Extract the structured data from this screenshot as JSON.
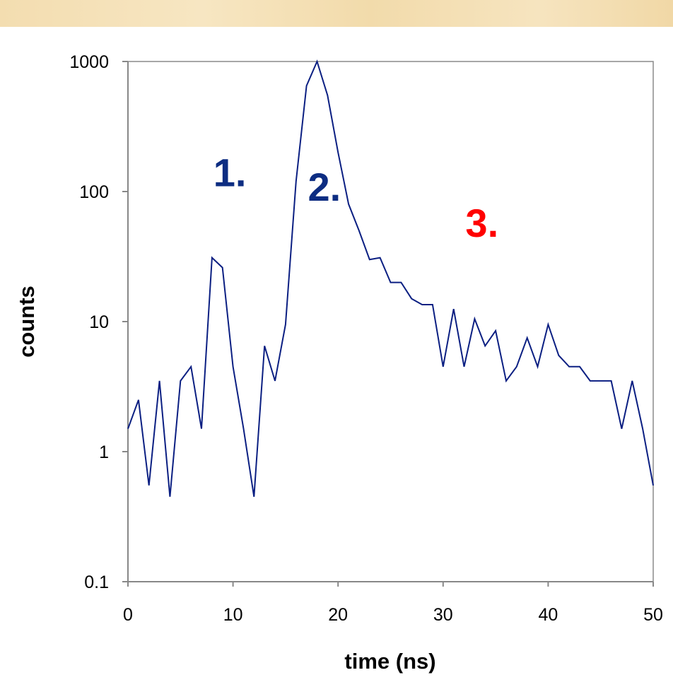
{
  "chart_data": {
    "type": "line",
    "xlabel": "time (ns)",
    "ylabel": "counts",
    "x_ticks": [
      "0",
      "10",
      "20",
      "30",
      "40",
      "50"
    ],
    "y_ticks": [
      "0.1",
      "1",
      "10",
      "100",
      "1000"
    ],
    "xlim": [
      0,
      50
    ],
    "ylim": [
      0.1,
      1000
    ],
    "y_scale": "log",
    "grid": false,
    "legend": "none",
    "series": [
      {
        "color": "#0b1f82",
        "x": [
          0,
          1,
          2,
          3,
          4,
          5,
          6,
          7,
          8,
          9,
          10,
          11,
          12,
          13,
          14,
          15,
          16,
          17,
          18,
          19,
          20,
          21,
          22,
          23,
          24,
          25,
          26,
          27,
          28,
          29,
          30,
          31,
          32,
          33,
          34,
          35,
          36,
          37,
          38,
          39,
          40,
          41,
          42,
          43,
          44,
          45,
          46,
          47,
          48,
          49,
          50
        ],
        "y": [
          1.5,
          2.5,
          0.55,
          3.5,
          0.45,
          3.5,
          4.5,
          1.5,
          31,
          26,
          4.5,
          1.5,
          0.45,
          6.5,
          3.5,
          9.5,
          120,
          650,
          1000,
          550,
          200,
          80,
          50,
          30,
          31,
          20,
          20,
          15,
          13.5,
          13.5,
          4.5,
          12.5,
          4.5,
          10.5,
          6.5,
          8.5,
          3.5,
          4.5,
          7.5,
          4.5,
          9.5,
          5.5,
          4.5,
          4.5,
          3.5,
          3.5,
          3.5,
          1.5,
          3.5,
          1.5,
          0.55
        ]
      }
    ],
    "annotations": [
      {
        "text": "1.",
        "x": 9.7,
        "y": 110,
        "color": "#0d2d82"
      },
      {
        "text": "2.",
        "x": 18.7,
        "y": 85,
        "color": "#0d2d82"
      },
      {
        "text": "3.",
        "x": 33.7,
        "y": 45,
        "color": "#ff0000"
      }
    ]
  }
}
